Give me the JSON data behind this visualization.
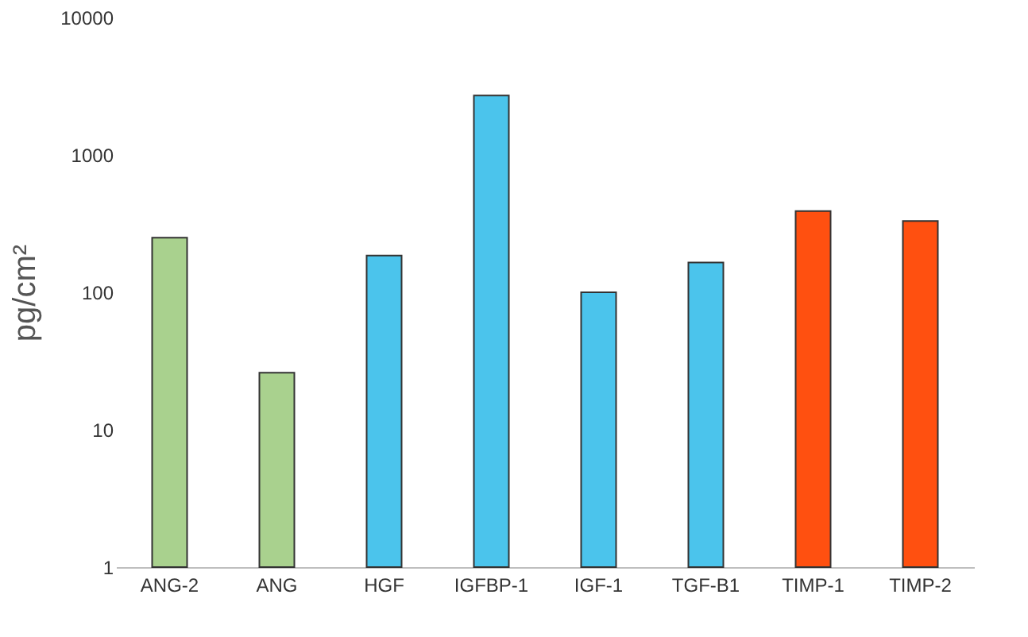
{
  "chart_data": {
    "type": "bar",
    "ylabel": "pg/cm²",
    "categories": [
      "ANG-2",
      "ANG",
      "HGF",
      "IGFBP-1",
      "IGF-1",
      "TGF-B1",
      "TIMP-1",
      "TIMP-2"
    ],
    "values": [
      250,
      26,
      185,
      2700,
      100,
      165,
      390,
      330
    ],
    "colors": [
      "#a9d18e",
      "#a9d18e",
      "#4bc4ec",
      "#4bc4ec",
      "#4bc4ec",
      "#4bc4ec",
      "#ff5010",
      "#ff5010"
    ],
    "log": true,
    "ylim": [
      1,
      10000
    ],
    "yticks": [
      1,
      10,
      100,
      1000,
      10000
    ],
    "grid": false,
    "legend": false
  }
}
